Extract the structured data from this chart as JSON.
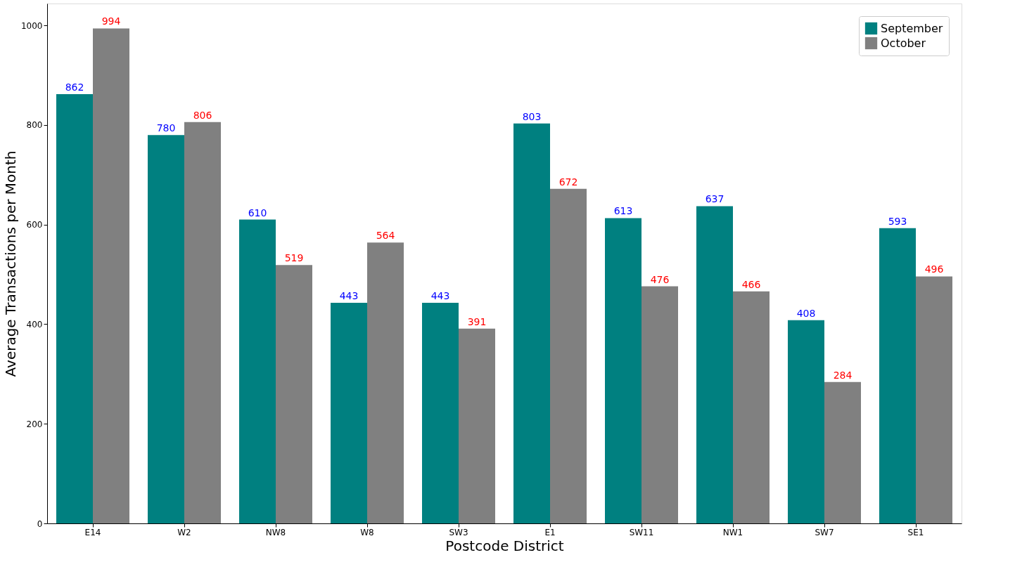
{
  "chart_data": {
    "type": "bar",
    "xlabel": "Postcode District",
    "ylabel": "Average Transactions per Month",
    "categories": [
      "E14",
      "W2",
      "NW8",
      "W8",
      "SW3",
      "E1",
      "SW11",
      "NW1",
      "SW7",
      "SE1"
    ],
    "series": [
      {
        "name": "September",
        "color": "#008080",
        "values": [
          862,
          780,
          610,
          443,
          443,
          803,
          613,
          637,
          408,
          593
        ]
      },
      {
        "name": "October",
        "color": "#808080",
        "values": [
          994,
          806,
          519,
          564,
          391,
          672,
          476,
          466,
          284,
          496
        ]
      }
    ],
    "ylim": [
      0,
      1044
    ],
    "yticks": [
      0,
      200,
      400,
      600,
      800,
      1000
    ],
    "data_labels": true,
    "legend": "top right",
    "grid": false
  }
}
